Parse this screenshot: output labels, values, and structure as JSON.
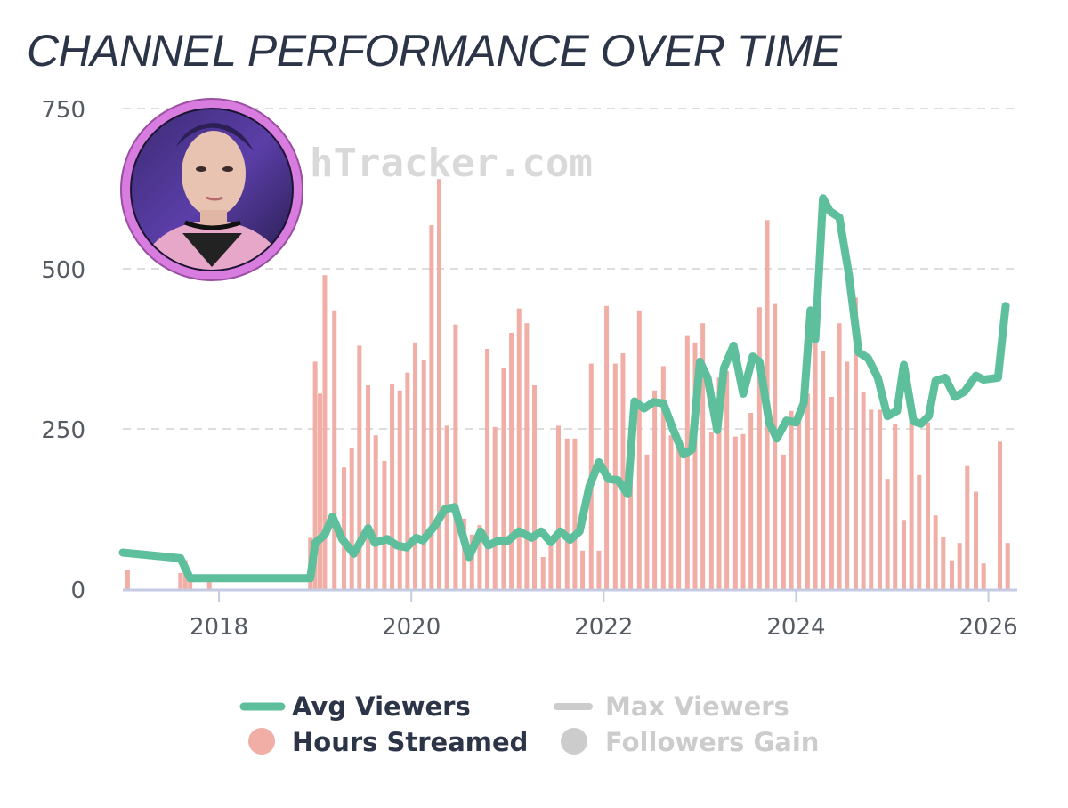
{
  "header": {
    "title": "CHANNEL PERFORMANCE OVER TIME"
  },
  "watermark": {
    "text": "hTracker.com"
  },
  "avatar": {
    "icon": "streamer-avatar-icon",
    "ring_color": "#d97ce0"
  },
  "colors": {
    "avg_viewers": "#5dbf9c",
    "hours_streamed": "#f0aea6",
    "inactive": "#cccccc",
    "grid": "#dddddd",
    "axis": "#c5cbe3"
  },
  "chart_data": {
    "type": "bar",
    "title": "CHANNEL PERFORMANCE OVER TIME",
    "xlabel": "",
    "ylabel": "",
    "xlim": [
      2017.0,
      2026.3
    ],
    "ylim": [
      0,
      750
    ],
    "y_ticks": [
      0,
      250,
      500,
      750
    ],
    "x_ticks": [
      "2018",
      "2020",
      "2022",
      "2024",
      "2026"
    ],
    "grid": true,
    "legend_position": "bottom",
    "legend": [
      {
        "name": "Avg Viewers",
        "active": true,
        "marker": "line"
      },
      {
        "name": "Max Viewers",
        "active": false,
        "marker": "line"
      },
      {
        "name": "Hours Streamed",
        "active": true,
        "marker": "dot"
      },
      {
        "name": "Followers Gain",
        "active": false,
        "marker": "dot"
      }
    ],
    "series": [
      {
        "name": "Hours Streamed",
        "type": "bar",
        "points": [
          [
            2017.05,
            30
          ],
          [
            2017.6,
            25
          ],
          [
            2017.65,
            45
          ],
          [
            2017.7,
            12
          ],
          [
            2017.9,
            12
          ],
          [
            2018.95,
            80
          ],
          [
            2019.0,
            355
          ],
          [
            2019.05,
            305
          ],
          [
            2019.1,
            490
          ],
          [
            2019.2,
            435
          ],
          [
            2019.3,
            190
          ],
          [
            2019.38,
            220
          ],
          [
            2019.46,
            380
          ],
          [
            2019.55,
            318
          ],
          [
            2019.63,
            240
          ],
          [
            2019.72,
            200
          ],
          [
            2019.8,
            320
          ],
          [
            2019.88,
            310
          ],
          [
            2019.96,
            338
          ],
          [
            2020.04,
            385
          ],
          [
            2020.13,
            358
          ],
          [
            2020.21,
            568
          ],
          [
            2020.29,
            640
          ],
          [
            2020.37,
            255
          ],
          [
            2020.46,
            413
          ],
          [
            2020.55,
            110
          ],
          [
            2020.63,
            85
          ],
          [
            2020.71,
            100
          ],
          [
            2020.79,
            375
          ],
          [
            2020.87,
            253
          ],
          [
            2020.96,
            345
          ],
          [
            2021.04,
            400
          ],
          [
            2021.12,
            438
          ],
          [
            2021.2,
            415
          ],
          [
            2021.28,
            318
          ],
          [
            2021.37,
            50
          ],
          [
            2021.45,
            80
          ],
          [
            2021.53,
            255
          ],
          [
            2021.62,
            235
          ],
          [
            2021.7,
            235
          ],
          [
            2021.78,
            60
          ],
          [
            2021.87,
            352
          ],
          [
            2021.95,
            60
          ],
          [
            2022.03,
            442
          ],
          [
            2022.12,
            352
          ],
          [
            2022.2,
            368
          ],
          [
            2022.28,
            175
          ],
          [
            2022.37,
            435
          ],
          [
            2022.45,
            210
          ],
          [
            2022.53,
            310
          ],
          [
            2022.62,
            348
          ],
          [
            2022.7,
            240
          ],
          [
            2022.78,
            230
          ],
          [
            2022.87,
            395
          ],
          [
            2022.95,
            385
          ],
          [
            2023.03,
            415
          ],
          [
            2023.12,
            245
          ],
          [
            2023.2,
            330
          ],
          [
            2023.28,
            340
          ],
          [
            2023.37,
            238
          ],
          [
            2023.45,
            242
          ],
          [
            2023.53,
            275
          ],
          [
            2023.62,
            440
          ],
          [
            2023.7,
            576
          ],
          [
            2023.78,
            445
          ],
          [
            2023.87,
            210
          ],
          [
            2023.95,
            278
          ],
          [
            2024.03,
            270
          ],
          [
            2024.12,
            305
          ],
          [
            2024.2,
            390
          ],
          [
            2024.28,
            372
          ],
          [
            2024.37,
            300
          ],
          [
            2024.45,
            415
          ],
          [
            2024.53,
            355
          ],
          [
            2024.62,
            455
          ],
          [
            2024.7,
            308
          ],
          [
            2024.78,
            280
          ],
          [
            2024.87,
            280
          ],
          [
            2024.95,
            172
          ],
          [
            2025.03,
            258
          ],
          [
            2025.12,
            108
          ],
          [
            2025.2,
            298
          ],
          [
            2025.28,
            178
          ],
          [
            2025.37,
            260
          ],
          [
            2025.45,
            115
          ],
          [
            2025.53,
            82
          ],
          [
            2025.62,
            45
          ],
          [
            2025.7,
            72
          ],
          [
            2025.78,
            192
          ],
          [
            2025.87,
            152
          ],
          [
            2025.95,
            40
          ],
          [
            2026.12,
            230
          ],
          [
            2026.2,
            72
          ]
        ]
      },
      {
        "name": "Avg Viewers",
        "type": "line",
        "points": [
          [
            2017.0,
            57
          ],
          [
            2017.6,
            48
          ],
          [
            2017.7,
            17
          ],
          [
            2018.95,
            17
          ],
          [
            2019.0,
            72
          ],
          [
            2019.1,
            85
          ],
          [
            2019.18,
            113
          ],
          [
            2019.28,
            78
          ],
          [
            2019.4,
            55
          ],
          [
            2019.55,
            95
          ],
          [
            2019.62,
            72
          ],
          [
            2019.75,
            78
          ],
          [
            2019.85,
            68
          ],
          [
            2019.95,
            65
          ],
          [
            2020.05,
            80
          ],
          [
            2020.12,
            76
          ],
          [
            2020.25,
            100
          ],
          [
            2020.35,
            125
          ],
          [
            2020.45,
            128
          ],
          [
            2020.6,
            50
          ],
          [
            2020.72,
            90
          ],
          [
            2020.8,
            68
          ],
          [
            2020.9,
            75
          ],
          [
            2021.0,
            75
          ],
          [
            2021.12,
            90
          ],
          [
            2021.25,
            80
          ],
          [
            2021.35,
            90
          ],
          [
            2021.45,
            73
          ],
          [
            2021.55,
            90
          ],
          [
            2021.65,
            77
          ],
          [
            2021.75,
            90
          ],
          [
            2021.85,
            160
          ],
          [
            2021.95,
            198
          ],
          [
            2022.05,
            172
          ],
          [
            2022.15,
            170
          ],
          [
            2022.25,
            148
          ],
          [
            2022.32,
            293
          ],
          [
            2022.42,
            282
          ],
          [
            2022.52,
            292
          ],
          [
            2022.62,
            290
          ],
          [
            2022.72,
            250
          ],
          [
            2022.83,
            210
          ],
          [
            2022.92,
            218
          ],
          [
            2023.0,
            355
          ],
          [
            2023.08,
            330
          ],
          [
            2023.18,
            248
          ],
          [
            2023.25,
            345
          ],
          [
            2023.35,
            380
          ],
          [
            2023.45,
            305
          ],
          [
            2023.55,
            363
          ],
          [
            2023.62,
            355
          ],
          [
            2023.72,
            260
          ],
          [
            2023.8,
            235
          ],
          [
            2023.9,
            263
          ],
          [
            2024.0,
            260
          ],
          [
            2024.08,
            290
          ],
          [
            2024.15,
            435
          ],
          [
            2024.2,
            390
          ],
          [
            2024.28,
            610
          ],
          [
            2024.35,
            590
          ],
          [
            2024.45,
            580
          ],
          [
            2024.55,
            490
          ],
          [
            2024.65,
            370
          ],
          [
            2024.75,
            360
          ],
          [
            2024.85,
            330
          ],
          [
            2024.95,
            270
          ],
          [
            2025.05,
            278
          ],
          [
            2025.12,
            350
          ],
          [
            2025.22,
            262
          ],
          [
            2025.3,
            258
          ],
          [
            2025.38,
            270
          ],
          [
            2025.45,
            325
          ],
          [
            2025.55,
            330
          ],
          [
            2025.65,
            300
          ],
          [
            2025.75,
            308
          ],
          [
            2025.87,
            333
          ],
          [
            2025.95,
            327
          ],
          [
            2026.1,
            330
          ],
          [
            2026.18,
            442
          ]
        ]
      }
    ]
  }
}
